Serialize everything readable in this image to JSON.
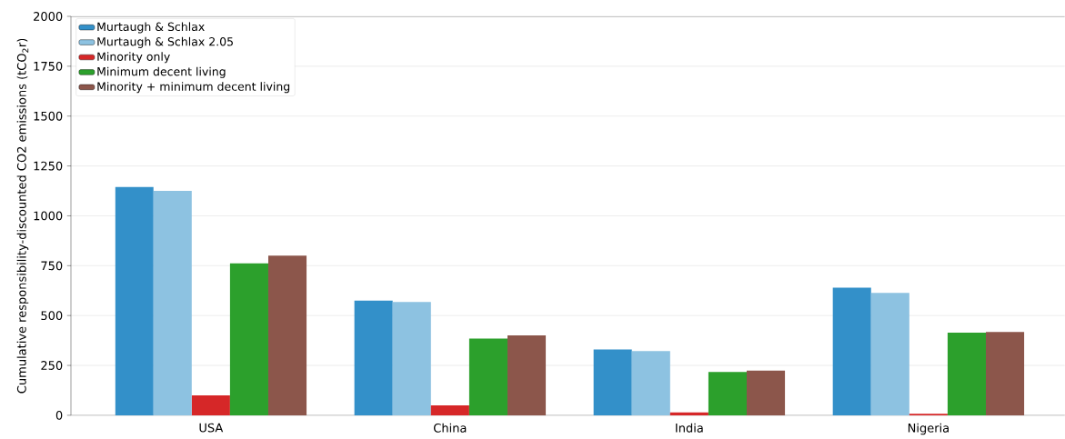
{
  "chart_data": {
    "type": "bar",
    "ylabel": "Cumulative responsibility-discounted CO2 emissions (tCO$_{2}$r)",
    "categories": [
      "USA",
      "China",
      "India",
      "Nigeria"
    ],
    "series": [
      {
        "name": "Murtaugh & Schlax",
        "color": "#3390c9",
        "values": [
          1145,
          575,
          330,
          640
        ]
      },
      {
        "name": "Murtaugh & Schlax 2.05",
        "color": "#8dc2e1",
        "values": [
          1125,
          568,
          322,
          613
        ]
      },
      {
        "name": "Minority only",
        "color": "#d62728",
        "values": [
          100,
          50,
          14,
          7
        ]
      },
      {
        "name": "Minimum decent living",
        "color": "#2ca02c",
        "values": [
          762,
          385,
          217,
          414
        ]
      },
      {
        "name": "Minority + minimum decent living",
        "color": "#8c564b",
        "values": [
          800,
          401,
          224,
          418
        ]
      }
    ],
    "ylim": [
      0,
      2000
    ],
    "yticks": [
      0,
      250,
      500,
      750,
      1000,
      1250,
      1500,
      1750,
      2000
    ],
    "grid": "y",
    "legend": "top left"
  }
}
